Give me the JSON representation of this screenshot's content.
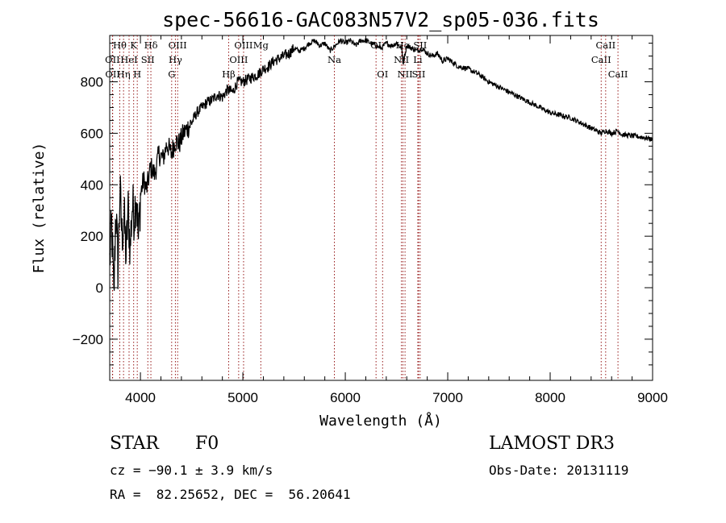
{
  "chart_data": {
    "type": "line",
    "title": "spec-56616-GAC083N57V2_sp05-036.fits",
    "xlabel": "Wavelength (Å)",
    "ylabel": "Flux (relative)",
    "xlim": [
      3700,
      9000
    ],
    "ylim": [
      -360,
      980
    ],
    "x_ticks": [
      4000,
      5000,
      6000,
      7000,
      8000,
      9000
    ],
    "y_ticks": [
      -200,
      0,
      200,
      400,
      600,
      800
    ],
    "series": [
      {
        "name": "flux",
        "x": [
          3700,
          3720,
          3740,
          3760,
          3780,
          3800,
          3820,
          3840,
          3860,
          3880,
          3900,
          3920,
          3940,
          3960,
          3980,
          4000,
          4030,
          4060,
          4100,
          4140,
          4180,
          4220,
          4260,
          4300,
          4340,
          4380,
          4420,
          4460,
          4500,
          4550,
          4600,
          4650,
          4700,
          4750,
          4800,
          4850,
          4900,
          4950,
          5000,
          5050,
          5100,
          5150,
          5200,
          5250,
          5300,
          5350,
          5400,
          5450,
          5500,
          5550,
          5600,
          5650,
          5700,
          5750,
          5800,
          5850,
          5900,
          5950,
          6000,
          6050,
          6100,
          6150,
          6200,
          6250,
          6300,
          6350,
          6400,
          6450,
          6500,
          6550,
          6563,
          6600,
          6650,
          6700,
          6750,
          6800,
          6850,
          6900,
          6950,
          7000,
          7100,
          7200,
          7300,
          7400,
          7500,
          7600,
          7700,
          7800,
          7900,
          8000,
          8100,
          8200,
          8300,
          8400,
          8498,
          8542,
          8600,
          8662,
          8700,
          8800,
          8900,
          8960,
          9000
        ],
        "y": [
          100,
          250,
          -50,
          320,
          80,
          380,
          200,
          280,
          120,
          300,
          150,
          320,
          280,
          380,
          180,
          360,
          420,
          380,
          470,
          440,
          520,
          500,
          560,
          520,
          570,
          560,
          600,
          620,
          640,
          680,
          700,
          720,
          730,
          750,
          740,
          770,
          760,
          800,
          800,
          810,
          820,
          830,
          850,
          860,
          880,
          890,
          900,
          910,
          930,
          920,
          930,
          950,
          960,
          940,
          950,
          920,
          940,
          960,
          950,
          960,
          940,
          960,
          960,
          950,
          940,
          930,
          950,
          940,
          950,
          930,
          870,
          940,
          930,
          920,
          930,
          910,
          900,
          910,
          880,
          890,
          860,
          850,
          830,
          800,
          780,
          760,
          740,
          720,
          700,
          680,
          670,
          660,
          640,
          620,
          600,
          610,
          600,
          610,
          595,
          590,
          585,
          580,
          575
        ]
      }
    ],
    "spectral_lines": [
      {
        "name": "Hθ",
        "wavelength": 3798,
        "row": 0
      },
      {
        "name": "OII",
        "wavelength": 3727,
        "row": 1
      },
      {
        "name": "OII",
        "wavelength": 3729,
        "row": 2
      },
      {
        "name": "HeI",
        "wavelength": 3889,
        "row": 1
      },
      {
        "name": "Hη",
        "wavelength": 3835,
        "row": 2
      },
      {
        "name": "K",
        "wavelength": 3934,
        "row": 0
      },
      {
        "name": "H",
        "wavelength": 3969,
        "row": 2
      },
      {
        "name": "SII",
        "wavelength": 4072,
        "row": 1
      },
      {
        "name": "Hδ",
        "wavelength": 4102,
        "row": 0
      },
      {
        "name": "OIII",
        "wavelength": 4363,
        "row": 0
      },
      {
        "name": "Hγ",
        "wavelength": 4341,
        "row": 1
      },
      {
        "name": "G",
        "wavelength": 4305,
        "row": 2
      },
      {
        "name": "Hβ",
        "wavelength": 4861,
        "row": 2
      },
      {
        "name": "OIII",
        "wavelength": 4959,
        "row": 1
      },
      {
        "name": "OIII",
        "wavelength": 5007,
        "row": 0
      },
      {
        "name": "Mg",
        "wavelength": 5175,
        "row": 0
      },
      {
        "name": "Na",
        "wavelength": 5893,
        "row": 1
      },
      {
        "name": "OI",
        "wavelength": 6300,
        "row": 0
      },
      {
        "name": "OI",
        "wavelength": 6364,
        "row": 2
      },
      {
        "name": "NII",
        "wavelength": 6548,
        "row": 1
      },
      {
        "name": "Hα",
        "wavelength": 6563,
        "row": 0
      },
      {
        "name": "NII",
        "wavelength": 6583,
        "row": 2
      },
      {
        "name": "SII",
        "wavelength": 6716,
        "row": 2
      },
      {
        "name": "Li",
        "wavelength": 6708,
        "row": 1
      },
      {
        "name": "SII",
        "wavelength": 6731,
        "row": 0
      },
      {
        "name": "CaII",
        "wavelength": 8498,
        "row": 1
      },
      {
        "name": "CaII",
        "wavelength": 8542,
        "row": 0
      },
      {
        "name": "CaII",
        "wavelength": 8662,
        "row": 2
      }
    ]
  },
  "info": {
    "class": "STAR",
    "subclass": "F0",
    "survey": "LAMOST DR3",
    "cz": "cz = −90.1 ± 3.9 km/s",
    "obs_date": "Obs-Date: 20131119",
    "coords": "RA =  82.25652, DEC =  56.20641"
  }
}
